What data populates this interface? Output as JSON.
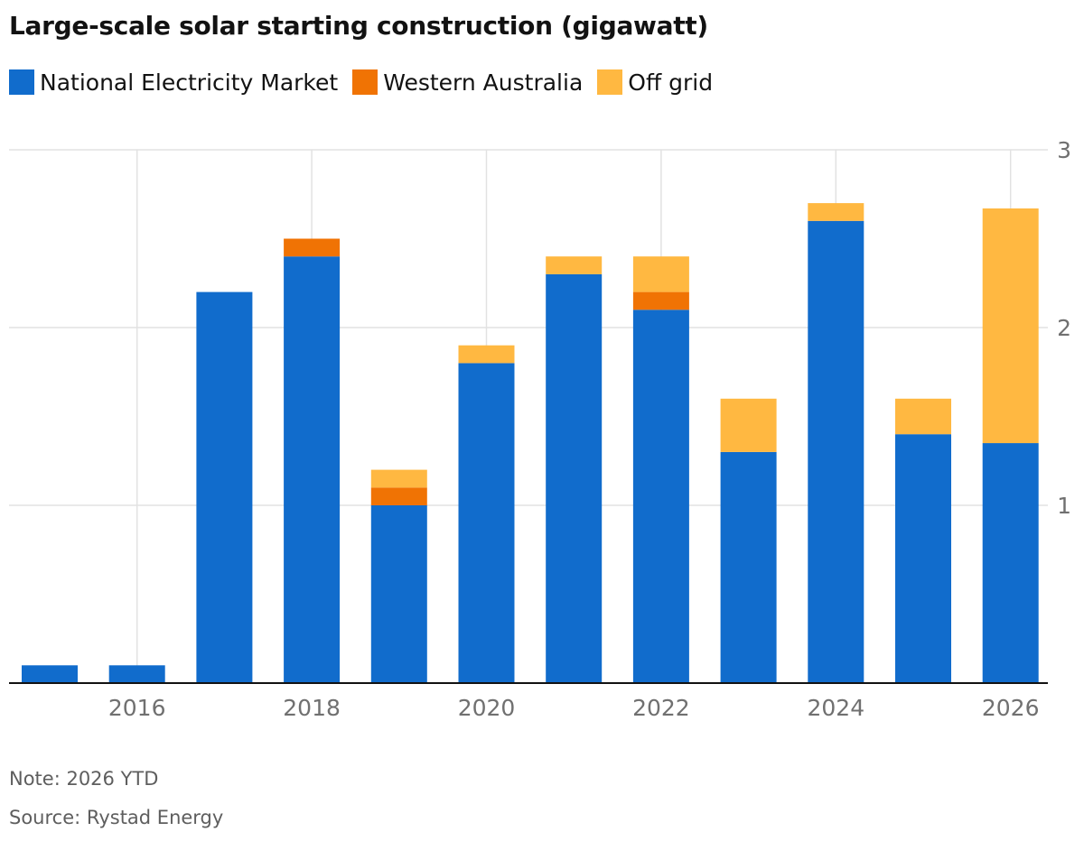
{
  "title": "Large-scale solar starting construction (gigawatt)",
  "note": "Note: 2026 YTD",
  "source": "Source: Rystad Energy",
  "colors": {
    "nem": "#116ccc",
    "wa": "#f07304",
    "offgrid": "#ffb841",
    "grid": "#e2e2e2",
    "axis": "#121212",
    "tick": "#707070"
  },
  "chart_data": {
    "type": "bar",
    "stacked": true,
    "x": [
      2015,
      2016,
      2017,
      2018,
      2019,
      2020,
      2021,
      2022,
      2023,
      2024,
      2025,
      2026
    ],
    "x_tick_labels": [
      "2016",
      "2018",
      "2020",
      "2022",
      "2024",
      "2026"
    ],
    "x_tick_values": [
      2016,
      2018,
      2020,
      2022,
      2024,
      2026
    ],
    "ylim": [
      0,
      3
    ],
    "y_tick_values": [
      1,
      2,
      3
    ],
    "y_tick_labels": [
      "1",
      "2",
      "3"
    ],
    "y_axis_position": "right",
    "grid": true,
    "legend_position": "top-left",
    "series": [
      {
        "name": "National Electricity Market",
        "color": "#116ccc",
        "values": [
          0.1,
          0.1,
          2.2,
          2.4,
          1.0,
          1.8,
          2.3,
          2.1,
          1.3,
          2.6,
          1.4,
          1.35
        ]
      },
      {
        "name": "Western Australia",
        "color": "#f07304",
        "values": [
          0,
          0,
          0,
          0.1,
          0.1,
          0,
          0,
          0.1,
          0,
          0,
          0,
          0
        ]
      },
      {
        "name": "Off grid",
        "color": "#ffb841",
        "values": [
          0,
          0,
          0,
          0,
          0.1,
          0.1,
          0.1,
          0.2,
          0.3,
          0.1,
          0.2,
          1.32
        ]
      }
    ]
  }
}
